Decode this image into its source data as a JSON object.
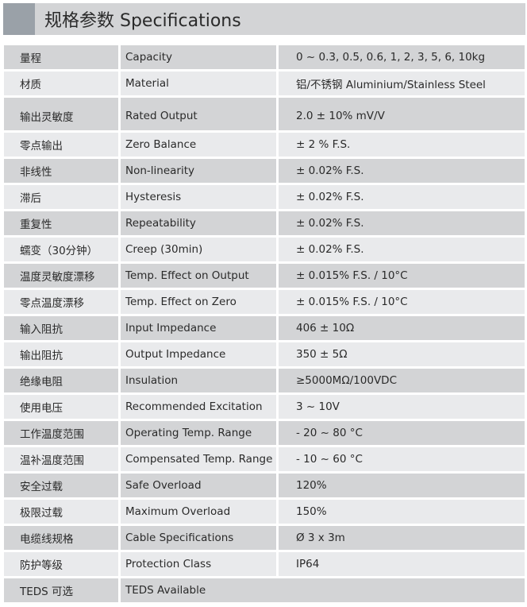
{
  "title": "规格参数 Specifications",
  "rows": [
    [
      "量程",
      "Capacity",
      "0 ~ 0.3, 0.5, 0.6, 1, 2, 3, 5, 6, 10kg"
    ],
    [
      "材质",
      "Material",
      "铝/不锈钢 Aluminium/Stainless Steel"
    ],
    [
      "输出灵敏度",
      "Rated Output",
      "2.0 ± 10% mV/V"
    ],
    [
      "零点输出",
      "Zero Balance",
      "± 2 % F.S."
    ],
    [
      "非线性",
      "Non-linearity",
      "± 0.02% F.S."
    ],
    [
      "滞后",
      "Hysteresis",
      "± 0.02% F.S."
    ],
    [
      "重复性",
      "Repeatability",
      "± 0.02% F.S."
    ],
    [
      "蠕变（30分钟）",
      "Creep (30min)",
      "± 0.02% F.S."
    ],
    [
      "温度灵敏度漂移",
      "Temp. Effect on Output",
      "± 0.015% F.S. / 10°C"
    ],
    [
      "零点温度漂移",
      "Temp. Effect on Zero",
      "± 0.015% F.S. / 10°C"
    ],
    [
      "输入阻抗",
      "Input Impedance",
      "406 ± 10Ω"
    ],
    [
      "输出阻抗",
      "Output Impedance",
      "350 ± 5Ω"
    ],
    [
      "绝缘电阻",
      "Insulation",
      "≥5000MΩ/100VDC"
    ],
    [
      "使用电压",
      "Recommended Excitation",
      "3 ~ 10V"
    ],
    [
      "工作温度范围",
      "Operating Temp. Range",
      "- 20 ~ 80 °C"
    ],
    [
      "温补温度范围",
      "Compensated Temp. Range",
      "- 10 ~ 60 °C"
    ],
    [
      "安全过载",
      "Safe Overload",
      "120%"
    ],
    [
      "极限过载",
      "Maximum Overload",
      "150%"
    ],
    [
      "电缆线规格",
      "Cable Specifications",
      "Ø 3 x 3m"
    ],
    [
      "防护等级",
      "Protection Class",
      "IP64"
    ],
    [
      "TEDS 可选",
      "TEDS Available"
    ]
  ]
}
